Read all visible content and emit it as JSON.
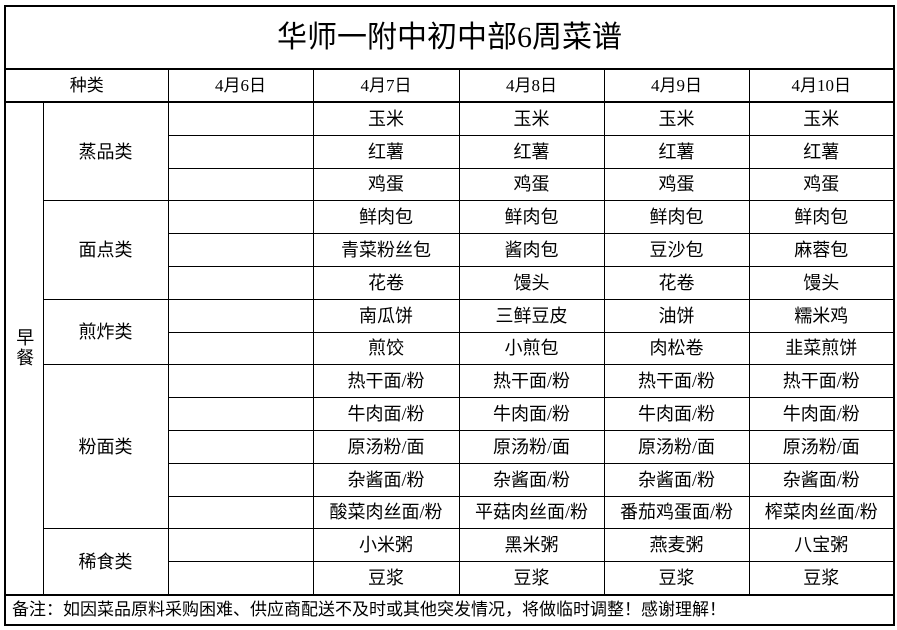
{
  "title": "华师一附中初中部6周菜谱",
  "header": {
    "category_label": "种类",
    "dates": [
      "4月6日",
      "4月7日",
      "4月8日",
      "4月9日",
      "4月10日"
    ]
  },
  "meal": "早餐",
  "categories": [
    {
      "name": "蒸品类",
      "rows": [
        [
          "",
          "玉米",
          "玉米",
          "玉米",
          "玉米"
        ],
        [
          "",
          "红薯",
          "红薯",
          "红薯",
          "红薯"
        ],
        [
          "",
          "鸡蛋",
          "鸡蛋",
          "鸡蛋",
          "鸡蛋"
        ]
      ]
    },
    {
      "name": "面点类",
      "rows": [
        [
          "",
          "鲜肉包",
          "鲜肉包",
          "鲜肉包",
          "鲜肉包"
        ],
        [
          "",
          "青菜粉丝包",
          "酱肉包",
          "豆沙包",
          "麻蓉包"
        ],
        [
          "",
          "花卷",
          "馒头",
          "花卷",
          "馒头"
        ]
      ]
    },
    {
      "name": "煎炸类",
      "rows": [
        [
          "",
          "南瓜饼",
          "三鲜豆皮",
          "油饼",
          "糯米鸡"
        ],
        [
          "",
          "煎饺",
          "小煎包",
          "肉松卷",
          "韭菜煎饼"
        ]
      ]
    },
    {
      "name": "粉面类",
      "rows": [
        [
          "",
          "热干面/粉",
          "热干面/粉",
          "热干面/粉",
          "热干面/粉"
        ],
        [
          "",
          "牛肉面/粉",
          "牛肉面/粉",
          "牛肉面/粉",
          "牛肉面/粉"
        ],
        [
          "",
          "原汤粉/面",
          "原汤粉/面",
          "原汤粉/面",
          "原汤粉/面"
        ],
        [
          "",
          "杂酱面/粉",
          "杂酱面/粉",
          "杂酱面/粉",
          "杂酱面/粉"
        ],
        [
          "",
          "酸菜肉丝面/粉",
          "平菇肉丝面/粉",
          "番茄鸡蛋面/粉",
          "榨菜肉丝面/粉"
        ]
      ]
    },
    {
      "name": "稀食类",
      "rows": [
        [
          "",
          "小米粥",
          "黑米粥",
          "燕麦粥",
          "八宝粥"
        ],
        [
          "",
          "豆浆",
          "豆浆",
          "豆浆",
          "豆浆"
        ]
      ]
    }
  ],
  "note": "备注：如因菜品原料采购困难、供应商配送不及时或其他突发情况，将做临时调整！感谢理解！"
}
